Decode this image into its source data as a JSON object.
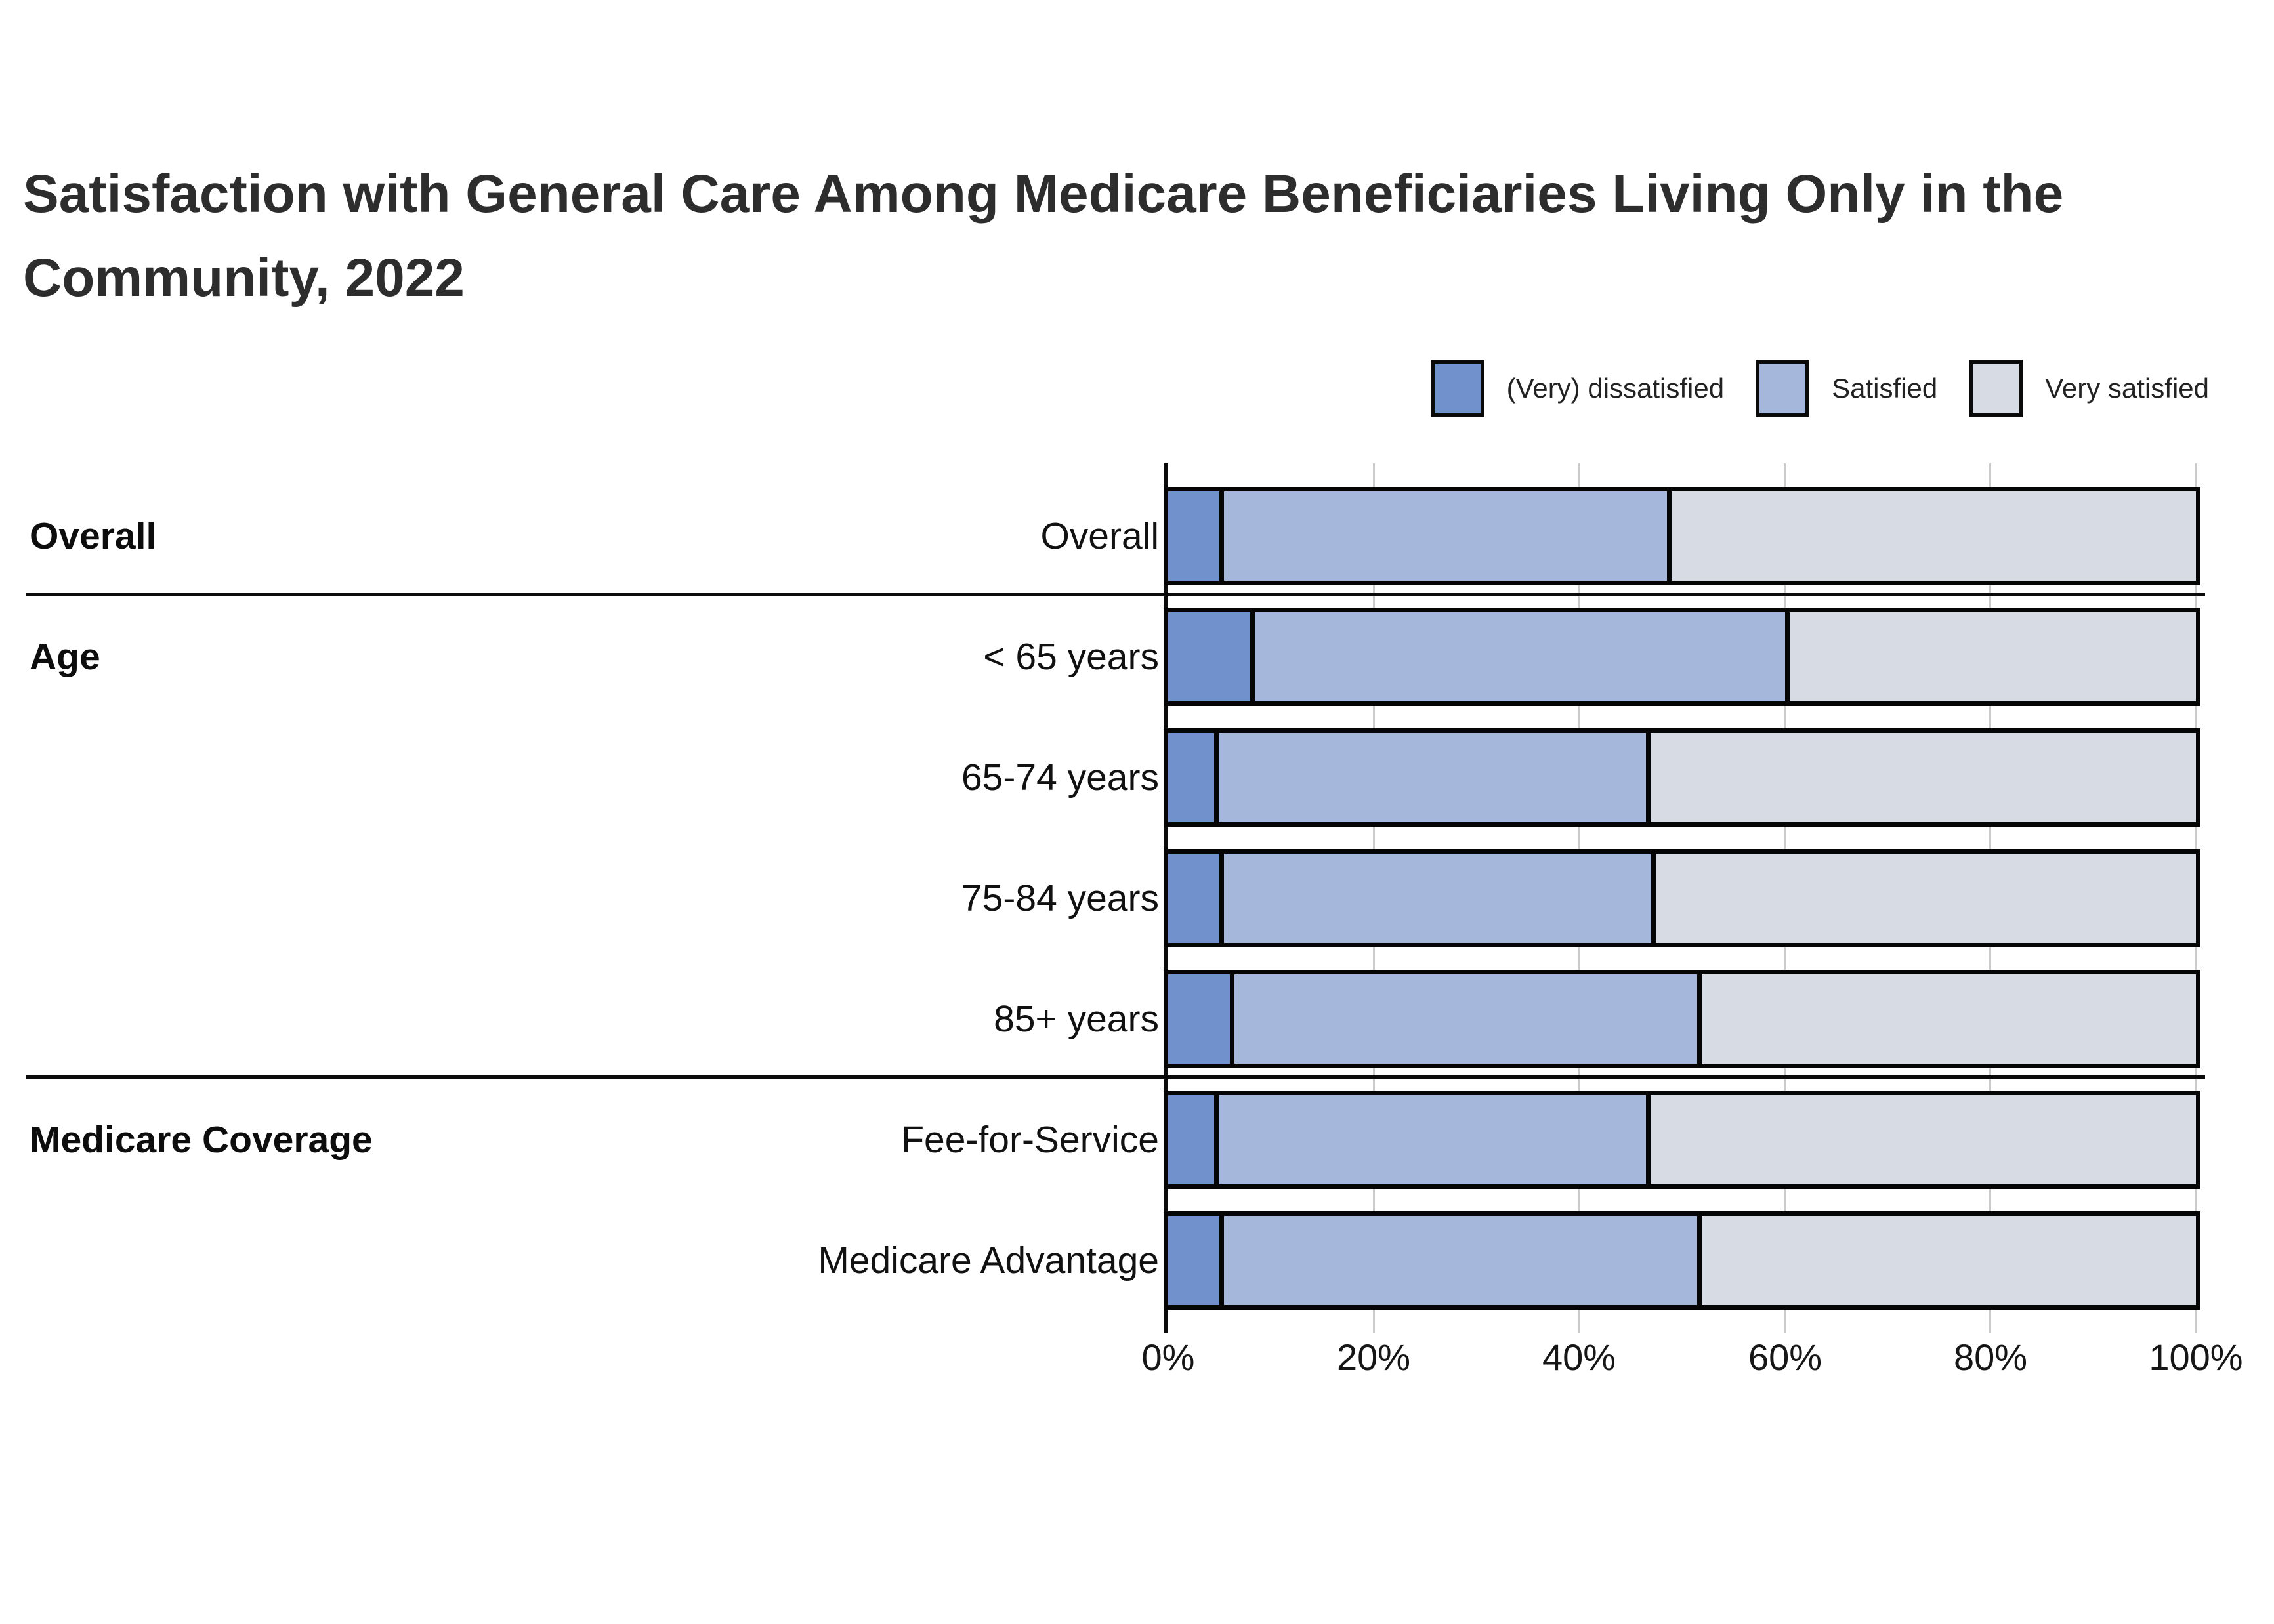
{
  "title_lines": [
    "Satisfaction with General Care Among Medicare Beneficiaries Living Only in the",
    "Community, 2022"
  ],
  "colors": {
    "dissatisfied": "#7191cd",
    "satisfied": "#a5b8dc",
    "very_satisfied": "#d6dbe4",
    "bar_outline": "#050505",
    "gridline": "#cbcbcb",
    "axis_line": "#0b0b0b",
    "title_text": "#2d2d2d",
    "label_text": "#111111"
  },
  "chart_data": {
    "type": "bar",
    "stacked": true,
    "orientation": "horizontal",
    "title": "Satisfaction with General Care Among Medicare Beneficiaries Living Only in the Community, 2022",
    "legend_position": "top-right",
    "series": [
      {
        "name": "(Very) dissatisfied",
        "color": "#7191cd",
        "key": "dissatisfied"
      },
      {
        "name": "Satisfied",
        "color": "#a5b8dc",
        "key": "satisfied"
      },
      {
        "name": "Very satisfied",
        "color": "#d6dbe4",
        "key": "very-satisfied"
      }
    ],
    "x_axis": {
      "min": 0,
      "max": 100,
      "unit": "%",
      "grid": true,
      "values": [
        0,
        20,
        40,
        60,
        80,
        100
      ],
      "ticks": [
        "0%",
        "20%",
        "40%",
        "60%",
        "80%",
        "100%"
      ]
    },
    "groups": [
      {
        "label": "Overall",
        "rows": [
          {
            "label": "Overall",
            "values": [
              5,
              43.5,
              51.5
            ]
          }
        ]
      },
      {
        "label": "Age",
        "rows": [
          {
            "label": "< 65 years",
            "values": [
              8,
              52,
              40
            ]
          },
          {
            "label": "65-74 years",
            "values": [
              4.5,
              42,
              53.5
            ]
          },
          {
            "label": "75-84 years",
            "values": [
              5,
              42,
              53
            ]
          },
          {
            "label": "85+ years",
            "values": [
              6,
              45.5,
              48.5
            ]
          }
        ]
      },
      {
        "label": "Medicare Coverage",
        "rows": [
          {
            "label": "Fee-for-Service",
            "values": [
              4.5,
              42,
              53.5
            ]
          },
          {
            "label": "Medicare Advantage",
            "values": [
              5,
              46.5,
              48.5
            ]
          }
        ]
      }
    ]
  }
}
